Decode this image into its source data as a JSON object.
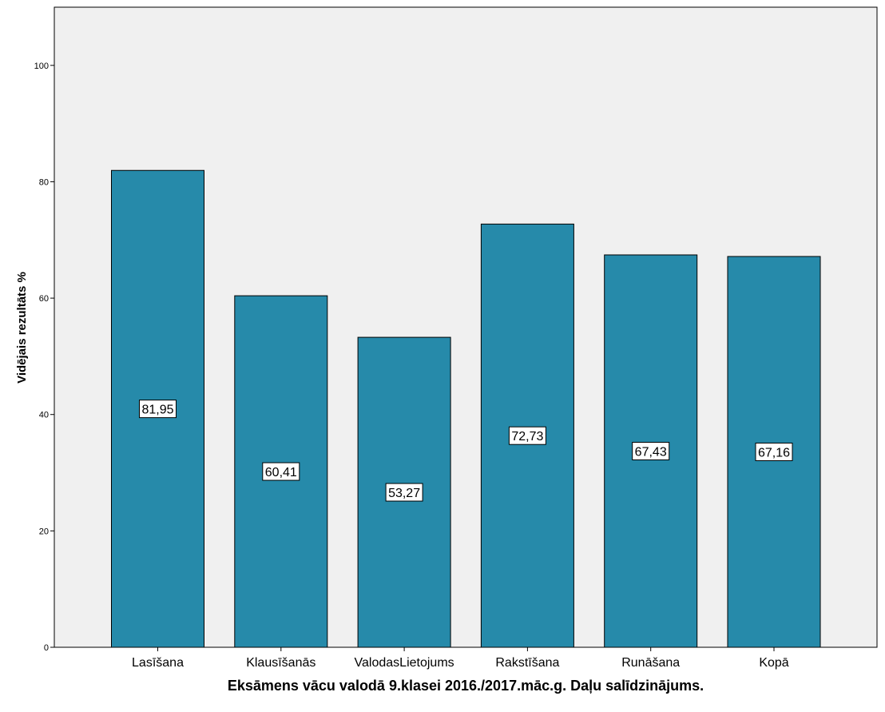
{
  "chart_data": {
    "type": "bar",
    "categories": [
      "Lasīšana",
      "Klausīšanās",
      "ValodasLietojums",
      "Rakstīšana",
      "Runāšana",
      "Kopā"
    ],
    "values": [
      81.95,
      60.41,
      53.27,
      72.73,
      67.43,
      67.16
    ],
    "value_labels": [
      "81,95",
      "60,41",
      "53,27",
      "72,73",
      "67,43",
      "67,16"
    ],
    "title": "",
    "xlabel": "Eksāmens vācu valodā 9.klasei 2016./2017.māc.g. Daļu salīdzinājums.",
    "ylabel": "Vidējais rezultāts %",
    "ylim": [
      0,
      110
    ],
    "yticks": [
      0,
      20,
      40,
      60,
      80,
      100
    ],
    "grid": false,
    "colors": {
      "bar": "#268aaa",
      "plot_bg": "#f0f0f0",
      "page_bg": "#ffffff"
    }
  }
}
